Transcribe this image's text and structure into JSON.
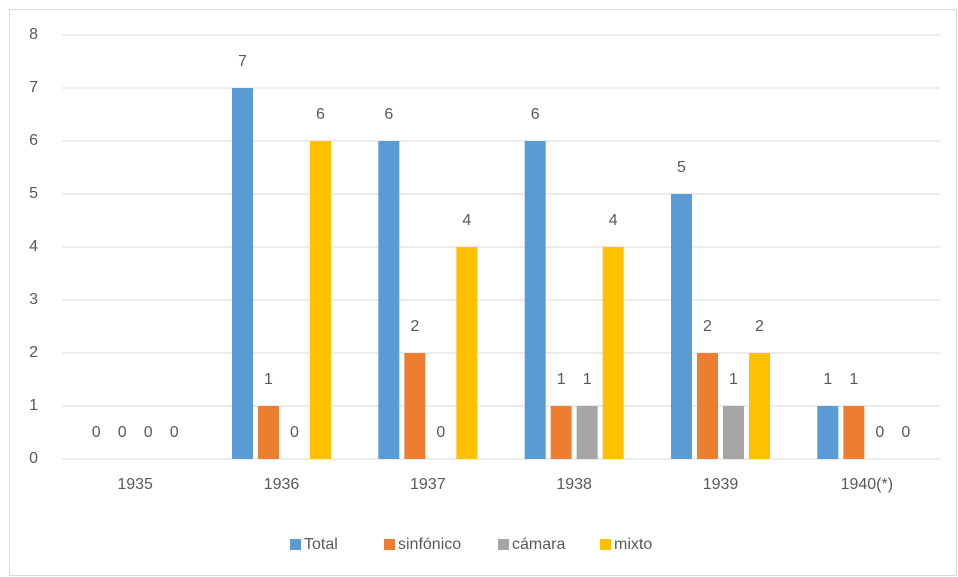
{
  "chart_data": {
    "type": "bar",
    "categories": [
      "1935",
      "1936",
      "1937",
      "1938",
      "1939",
      "1940(*)"
    ],
    "series": [
      {
        "name": "Total",
        "color": "#5b9bd5",
        "values": [
          0,
          7,
          6,
          6,
          5,
          1
        ]
      },
      {
        "name": "sinfónico",
        "color": "#ed7d31",
        "values": [
          0,
          1,
          2,
          1,
          2,
          1
        ]
      },
      {
        "name": "cámara",
        "color": "#a5a5a5",
        "values": [
          0,
          0,
          0,
          1,
          1,
          0
        ]
      },
      {
        "name": "mixto",
        "color": "#ffc000",
        "values": [
          0,
          6,
          4,
          4,
          2,
          0
        ]
      }
    ],
    "ylim": [
      0,
      8
    ],
    "yticks": [
      0,
      1,
      2,
      3,
      4,
      5,
      6,
      7,
      8
    ],
    "grid": true,
    "legend": "bottom",
    "data_labels": true
  }
}
